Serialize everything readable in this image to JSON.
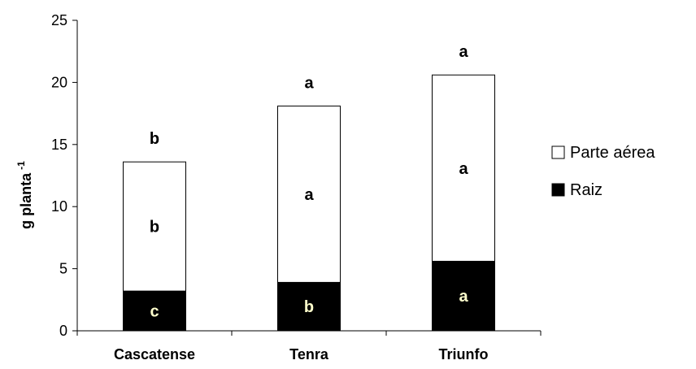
{
  "chart_data": {
    "type": "bar",
    "stacked": true,
    "categories": [
      "Cascatense",
      "Tenra",
      "Triunfo"
    ],
    "series": [
      {
        "name": "Raiz",
        "values": [
          3.2,
          3.9,
          5.6
        ],
        "letters": [
          "c",
          "b",
          "a"
        ],
        "color": "#000000",
        "letter_color": "#ffffcc"
      },
      {
        "name": "Parte aérea",
        "values": [
          10.4,
          14.2,
          15.0
        ],
        "letters": [
          "b",
          "a",
          "a"
        ],
        "color": "#ffffff",
        "letter_color": "#000000"
      }
    ],
    "total_letters": [
      "b",
      "a",
      "a"
    ],
    "ylabel": "g planta",
    "ylabel_superscript": "-1",
    "ylim": [
      0,
      25
    ],
    "yticks": [
      "0",
      "5",
      "10",
      "15",
      "20",
      "25"
    ],
    "grid": false,
    "legend_position": "right"
  }
}
